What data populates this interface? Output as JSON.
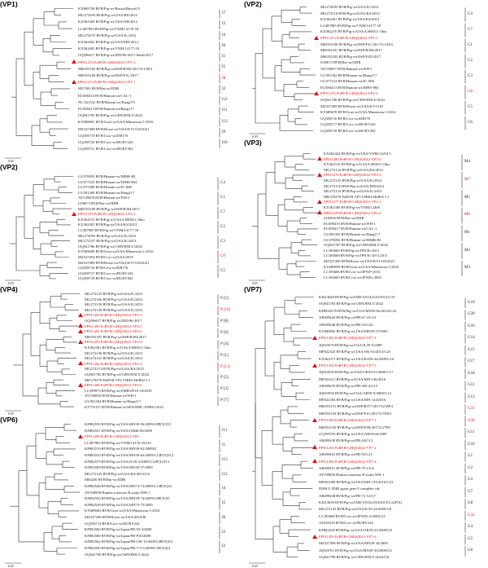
{
  "panels": [
    {
      "id": "vp1",
      "title": "(VP1)",
      "clades": [
        {
          "label": "I7"
        },
        {
          "label": "I3"
        },
        {
          "label": "I4"
        },
        {
          "label": "I6"
        },
        {
          "label": "I1"
        },
        {
          "label": "I5"
        },
        {
          "label": "I8",
          "highlight": true
        },
        {
          "label": "I2"
        },
        {
          "label": "I12"
        },
        {
          "label": "I11"
        },
        {
          "label": "I13"
        },
        {
          "label": "I9"
        },
        {
          "label": "I10"
        }
      ],
      "leaves": [
        {
          "text": "KX869738 RVB/Pig-wt/Russia/Buryat15"
        },
        {
          "text": "MG272493 RVB/Pig-wt/USA/RS/2012"
        },
        {
          "text": "KX362369 RVB/Pig-wt/USA/OH/2012"
        },
        {
          "text": "LC487993 RVB/Pig-wt/VNM/14176-18"
        },
        {
          "text": "MG272075 RVB/Pig-wt/USA/IL/2012"
        },
        {
          "text": "KX362402 RVB/Pig-wt/USA/MN/2012"
        },
        {
          "text": "KX362403 RVB/Pig-wt/VNM/14177-18"
        },
        {
          "text": "OQ596617 RVB/Pig-wt/IND/96-2017-Modi/2017"
        },
        {
          "text": "FP911275 PoRVB-GHQS2022-VP1-2",
          "highlight": true,
          "marker": true
        },
        {
          "text": "MK953183 RVB/Pig-wt/ESP/B394/2017/G1XP4"
        },
        {
          "text": "MK953184 RVB/Pig-wt/ESP/P1C/2017"
        },
        {
          "text": "FP911273 PoRVB-GHQS2022-VP1-1",
          "highlight": true,
          "marker": true
        },
        {
          "text": "M57365 RVB/Rat-wt/IDIR"
        },
        {
          "text": "EU490414 RVB/Human-wt/CAL-1"
        },
        {
          "text": "NC 021541 RVB/Human-wt/Bang373"
        },
        {
          "text": "EU490415 RVB/Human-wt/Bang117"
        },
        {
          "text": "OQ941783 RVB/Pig-wt/CHN/HNLY/2022"
        },
        {
          "text": "KY689681 RVB/Goat-wt/USA/Minnesota-1/2016"
        },
        {
          "text": "MZ327488 RVB/Horse-wt/USA/KY1518/2021"
        },
        {
          "text": "GQ358719 RVB/Cow-wt/DB176"
        },
        {
          "text": "GQ358720 RVB/Cow-wt/RUBV226"
        },
        {
          "text": "GQ358721 RVB/Cow-wt/RUBV282"
        }
      ]
    },
    {
      "id": "vp2a",
      "title": "(VP2)",
      "clades": [
        {
          "label": "C4"
        },
        {
          "label": "C7"
        },
        {
          "label": "C1"
        },
        {
          "label": "C2"
        },
        {
          "label": "C3"
        },
        {
          "label": "C8",
          "highlight": true
        },
        {
          "label": "C5"
        },
        {
          "label": "C6"
        }
      ],
      "leaves": [
        {
          "text": "MG272095 RVB/Pig-wt/USA/IL/2012"
        },
        {
          "text": "MG272116 RVB/Pig-wt/USA/KS/2013"
        },
        {
          "text": "KX362401 RVB/Pig-wt/USA/KS/2012"
        },
        {
          "text": "LC487985 RVB/Pig-wt/VNM/14177-18"
        },
        {
          "text": "KX362276 RVB/Pig-tc/USA/LS00011 Ohio"
        },
        {
          "text": "FP911274 PoRVB-GHQS2022-VP2-1",
          "highlight": true,
          "marker": true
        },
        {
          "text": "MK953180 RVB/Pig-wt/ESP/P1C/2017/G1XP4"
        },
        {
          "text": "MK953181 RVB/Pig-wt/ESP/B394/2017"
        },
        {
          "text": "MK953182 RVB/Pig-wt/ESP/P1D/2017"
        },
        {
          "text": "U00673 RVB/Rat-wt/IDIR"
        },
        {
          "text": "AY539857 RVB/Human-wt/WH-1"
        },
        {
          "text": "GU391302 RVB/Human-wt/Bang117"
        },
        {
          "text": "GU377214 RVB/Human-wt/IC-008"
        },
        {
          "text": "EU490413 RVB/Human-wt/IDHS-984"
        },
        {
          "text": "FP911276 PoRVB-GHQS2022-VP2-2",
          "highlight": true,
          "marker": true
        },
        {
          "text": "OQ941786 RVB/Pig-wt/CHN/HNLY/2022"
        },
        {
          "text": "MZ327489 RVB/Horse-wt/USA/KY1518"
        },
        {
          "text": "KY689678 RVB/Goat-wt/USA/Minnesota-1/2016"
        },
        {
          "text": "GQ358716 RVB/Cow-wt/DB176"
        },
        {
          "text": "GQ358717 RVB/Cow-wt/RUBV226"
        },
        {
          "text": "GQ358718 RVB/Cow-wt/RUBV282"
        }
      ]
    },
    {
      "id": "vp2b",
      "title": "(VP2)",
      "clades": [
        {
          "label": "C4"
        },
        {
          "label": "C1"
        },
        {
          "label": "C7"
        },
        {
          "label": "C2"
        },
        {
          "label": "C3"
        },
        {
          "label": "C8",
          "highlight": true
        },
        {
          "label": "C5"
        }
      ],
      "leaves": [
        {
          "text": "GU370055 RVB/Human-wt/MMR-B1"
        },
        {
          "text": "GU377225 RVB/Human-wt/IDHS-984"
        },
        {
          "text": "GU377208 RVB/Human-wt/IC-008"
        },
        {
          "text": "GU391300 RVB/Human-wt/Bang117"
        },
        {
          "text": "AY539859 RVB/Human-wt/WH-1"
        },
        {
          "text": "U00673 RVB/Rat-wt/IDIR"
        },
        {
          "text": "MK953180 RVB/Pig-wt/ESP/B394/2017"
        },
        {
          "text": "FP911276 PoRVB-GHQS2022-VP2-2",
          "highlight": true,
          "marker": true
        },
        {
          "text": "KX362515 RVB/Pig-tc/USA/LS00011 Ohio"
        },
        {
          "text": "KX362401 RVB/Pig-wt/USA/KS/2012"
        },
        {
          "text": "LC487985 RVB/Pig-wt/VNM/14177-18"
        },
        {
          "text": "MG272095 RVB/Pig-wt/USA/IL/2012"
        },
        {
          "text": "MG272107 RVB/Pig-wt/USA/IL/2013"
        },
        {
          "text": "OQ941786 RVB/Pig-wt/CHN/HNLY/2022"
        },
        {
          "text": "KY689698 RVB/Goat-wt/USA/Minnesota-1/2016"
        },
        {
          "text": "MZ327494 RVB/Cow-wt/USA/2019"
        },
        {
          "text": "MZ327489 RVB/Horse-wt/USA/KY1518/2021"
        },
        {
          "text": "GQ358716 RVB/Cow-wt/DB176"
        },
        {
          "text": "GQ358717 RVB/Cow-wt/RUBV226"
        },
        {
          "text": "GQ358718 RVB/Cow-wt/RUBV282"
        }
      ]
    },
    {
      "id": "vp3",
      "title": "(VP3)",
      "clades": [
        {
          "label": "M4"
        },
        {
          "label": "M7",
          "highlight": true
        },
        {
          "label": "M5"
        },
        {
          "label": "M6",
          "highlight": true
        },
        {
          "label": "M1"
        },
        {
          "label": "M2"
        },
        {
          "label": "M3"
        }
      ],
      "leaves": [
        {
          "text": "KX362424 RVB/Pig-wt/USA/VNM/14254 5"
        },
        {
          "text": "FP911280 PoRVB-GHQS2022-VP3-4",
          "highlight": true,
          "marker": true
        },
        {
          "text": "KX362516 RVB/Pig-tc/USA/LS00011 Ohio"
        },
        {
          "text": "MG272134 RVB/Pig-wt/USA/KS/2012"
        },
        {
          "text": "FP911279 PoRVB-GHQS2022-VP3-3",
          "highlight": true,
          "marker": true
        },
        {
          "text": "MG272135 RVB/Pig-wt/USA/IL/2013"
        },
        {
          "text": "MG272116 RVB/Pig-wt/USA/MN/2012"
        },
        {
          "text": "MG272133 RVB/Pig-wt/USA/IL/2013"
        },
        {
          "text": "MK379278 PoRVB VP3 VIRES HeB02 C1"
        },
        {
          "text": "FP911277 PoRVB-GHQS2022-VP3-1",
          "highlight": true,
          "marker": true
        },
        {
          "text": "KX362369 RVB/Pig-wt/VNM/12469"
        },
        {
          "text": "FP911278 PoRVB-GHQS2022-VP3-2",
          "highlight": true,
          "marker": true
        },
        {
          "text": "U00556 RVB/Rat-wt/IDIR"
        },
        {
          "text": "EU490416 RVB/Human-wt/WH-1"
        },
        {
          "text": "EU490417 RVB/Human-wt/CAL-1"
        },
        {
          "text": "GU391303 RVB/Human-wt/Bang117"
        },
        {
          "text": "GU370056 RVB/Human-wt/MMR-B1"
        },
        {
          "text": "OQ941787 RVB/Pig-wt/CHN/HNLY/2022"
        },
        {
          "text": "LC185668 RVB/Pig-wt/JPN/Ei-2011"
        },
        {
          "text": "LC185669 RVB/Pig-wt/JPN/Ei-2011/2011"
        },
        {
          "text": "MZ327490 RVB/Horse-wt/USA/KY1518/2021"
        },
        {
          "text": "KY689699 RVB/Goat-wt/USA/Minnesota-1/2016"
        },
        {
          "text": "LC185666 RVB/Cow-wt/JPN/P-2014"
        },
        {
          "text": "LC185665 RVB/Cow-wt/JPN/Ei-2003"
        }
      ]
    },
    {
      "id": "vp4",
      "title": "(VP4)",
      "clades": [
        {
          "label": "P [5]"
        },
        {
          "label": "P [10]",
          "highlight": true
        },
        {
          "label": "P [8]"
        },
        {
          "label": "P [6]"
        },
        {
          "label": "P [4]"
        },
        {
          "label": "P [1]"
        },
        {
          "label": "P [11]",
          "highlight": true
        },
        {
          "label": "P [2]"
        },
        {
          "label": "P [3]"
        },
        {
          "label": "P [7]"
        }
      ],
      "leaves": [
        {
          "text": "MG272125 RVB/Pig-wt/USA/IL/2013"
        },
        {
          "text": "MG272166 RVB/Pig-wt/USA/IL/2012"
        },
        {
          "text": "MG272159 RVB/Pig-wt/USA/IL/2013"
        },
        {
          "text": "MG272158 RVB/Pig-wt/USA/IL/2013"
        },
        {
          "text": "FP911284 PoRVB-GHQS2022-VP4-1",
          "highlight": true,
          "marker": true
        },
        {
          "text": "OQ596617 RVB/Pig-wt/IND/96-2017"
        },
        {
          "text": "FP911285 PoRVB-GHQS2022-VP4-5",
          "highlight": true,
          "marker": true
        },
        {
          "text": "FP911281 PoRVB-GHQS2022-VP4-2",
          "highlight": true,
          "marker": true
        },
        {
          "text": "MK953197 RVB/Pig-wt/ESP/B394/2017"
        },
        {
          "text": "FP911283 PoRVB-GHQS2022-VP4-4",
          "highlight": true,
          "marker": true
        },
        {
          "text": "KX362361 RVB/Pig-tc/USA/LS00011 Ohio"
        },
        {
          "text": "MG272136 RVB/Pig-wt/USA/IL/2012"
        },
        {
          "text": "MG272141 RVB/Pig-wt/USA/IL/2013"
        },
        {
          "text": "FP911282 PoRVB-GHQS2022-VP4-3",
          "highlight": true,
          "marker": true
        },
        {
          "text": "MG272113 RVB/Pig-wt/USA/KS/2013"
        },
        {
          "text": "OQ941785 RVB/Pig-wt/CHN/HNLY/2022"
        },
        {
          "text": "MK379279 PoRVB VP4 VIRES HeB02 C1"
        },
        {
          "text": "FP911286 PoRVB-GHQS2022-VP4-6",
          "highlight": true,
          "marker": true
        },
        {
          "text": "LC189973 RVB/Pig-wt/ZMB/ZP16-18/2018"
        },
        {
          "text": "AY539856 RVB/Human-wt/WH-1"
        },
        {
          "text": "GU391304 RVB/Human-wt/Bang117"
        },
        {
          "text": "KT755137 RVB/Human-wt/SEN/MRC-DPRU/2010"
        }
      ]
    },
    {
      "id": "vp6",
      "title": "(VP6)",
      "clades": [
        {
          "label": "I11"
        },
        {
          "label": "I1"
        },
        {
          "label": "I13"
        },
        {
          "label": "I12"
        },
        {
          "label": "I4"
        },
        {
          "label": "I5"
        },
        {
          "label": "I6"
        },
        {
          "label": "I3"
        },
        {
          "label": "I2"
        }
      ],
      "leaves": [
        {
          "text": "KF882550 RVB/Pig-wt/USA/MN39-36/2009/G8P[X]/I11"
        },
        {
          "text": "KF882551 RVB/Pig-wt/USA/OH46-60/2009"
        },
        {
          "text": "FP911288 PoRVB-GHQS2022-VP6",
          "highlight": true,
          "marker": true
        },
        {
          "text": "LC487982 RVB/Pig-wt/VNM/14176-18/I10"
        },
        {
          "text": "KF882519 RVB/Pig-wt/USA/MN39-62/2009/I1"
        },
        {
          "text": "KF882535 RVB/Pig-wt/USA/MN39-62/2009/G12P[X]/I12"
        },
        {
          "text": "KF882579 RVB/Pig-wt/USA/IL59-3/2009/G12P[X]/I13"
        },
        {
          "text": "KF882599 RVB/Pig-wt/USA/MN39-57/2009"
        },
        {
          "text": "MG272145 RVB/Pig-wt/USA/KS/2012/I12"
        },
        {
          "text": "M84456 RVB/Rat-wt/IDIR"
        },
        {
          "text": "KF882548 RVB/Pig-wt/USA/MN74-72/2009/G14P[X]/I4"
        },
        {
          "text": "AY539858 Human rotavirus B strain WH-1"
        },
        {
          "text": "KF882556 RVB/Pig-wt/USA/MN39-74/2009/G9P[X]/I5"
        },
        {
          "text": "KF882528 RVB/Pig-wt/USA/MN74-75/2009"
        },
        {
          "text": "KY689663 RVB/Goat-wt/USA/Minnesota-1/2016"
        },
        {
          "text": "MZ327496 RVB/Horse-wt/USA/2019/I6"
        },
        {
          "text": "GQ358714 RVB/Cow-wt/RUBV226"
        },
        {
          "text": "KF882566 RVB/Pig-wt/Japan/PB-93-3/2009"
        },
        {
          "text": "KF882560 RVB/Pig-wt/Japan/PB-P10/2009"
        },
        {
          "text": "KF882562 RVB/Pig-wt/Japan/PB-158-15/2009/G8P[X]/I3"
        },
        {
          "text": "KF882590 RVB/Pig-wt/Japan/PB-7-5-5/2009/G5P[X]/I4"
        },
        {
          "text": "OQ941790 RVB/Pig-wt/CHN/HNLY/2022"
        }
      ]
    },
    {
      "id": "vp7",
      "title": "(VP7)",
      "clades": [
        {
          "label": "G19"
        },
        {
          "label": "G20"
        },
        {
          "label": "G16"
        },
        {
          "label": "G14"
        },
        {
          "label": "G15"
        },
        {
          "label": "G17"
        },
        {
          "label": "G18"
        },
        {
          "label": "G12"
        },
        {
          "label": "G13"
        },
        {
          "label": "G31",
          "highlight": true
        },
        {
          "label": "G30",
          "highlight": true
        },
        {
          "label": "G11"
        },
        {
          "label": "G10"
        },
        {
          "label": "G1"
        },
        {
          "label": "G2"
        },
        {
          "label": "G3"
        },
        {
          "label": "G7"
        },
        {
          "label": "G8"
        },
        {
          "label": "G32",
          "highlight": true
        },
        {
          "label": "G4"
        },
        {
          "label": "G5"
        },
        {
          "label": "G6"
        }
      ],
      "leaves": [
        {
          "text": "KJ613649 RVB/Pig-wt/IND/AN142129/2013/G19"
        },
        {
          "text": "OQ941783 RVB/Pig-wt/CHN/HNLY/2022"
        },
        {
          "text": "KF8822578 RVB/Pig-wt/USA/MN39-66/2014/G22"
        },
        {
          "text": "AB499443 RVB/Pig-wt/PB-67-2/G14"
        },
        {
          "text": "AB499448 RVB/Pig-wt/PB-33/G20"
        },
        {
          "text": "KY689693 RVB/Pig-wt/USA/MN39-37/2009"
        },
        {
          "text": "FP911282 PoRVB-GHQS2022-VP7-3",
          "highlight": true,
          "marker": true
        },
        {
          "text": "JQ943570 RVB/Pig-wt/USA/IL59-5/2009"
        },
        {
          "text": "MF022325 RVB/Pig-wt/USA/OK-63/2013/G25"
        },
        {
          "text": "KX362371 RVB/Pig-wt/USA/KS59-44/2009/G16"
        },
        {
          "text": "FP911294 PoRVB-GHQS2022-VP7-5",
          "highlight": true,
          "marker": true
        },
        {
          "text": "JQ943556 RVB/Pig-wt/USA/OK59-51/2009/G17"
        },
        {
          "text": "MF022411 RVB/Pig-wt/USA/MN-146/2016"
        },
        {
          "text": "AB499435 RVB/Pig-wt/PB-369-2/G15"
        },
        {
          "text": "JQ943556 RVB/Pig-wt/USA/AR59-9/2009/G14"
        },
        {
          "text": "MF022384 RVB/Pig-wt/USA/MN-124/2016"
        },
        {
          "text": "MK953151 RVB/Pig-wt/ESP/B377/2017/G5XP4"
        },
        {
          "text": "MK953150 RVB/Pig-wt/ESP/P1C/2017/G5XP4"
        },
        {
          "text": "FP911289 PoRVB-GHQS2022-VP7-1",
          "highlight": true,
          "marker": true
        },
        {
          "text": "MK953156 RVB/Pig-wt/ESP/P1B/2017/G27P6"
        },
        {
          "text": "GQ358703 RVB/Pig-wt/USA/AR59-66/2009"
        },
        {
          "text": "AB499438 RVB/Pig-wt/PB-44/G13"
        },
        {
          "text": "FP911291 PoRVB-GHQS2022-VP7-2",
          "highlight": true,
          "marker": true
        },
        {
          "text": "AB499441 RVB/Pig-wt/PB-55/G11"
        },
        {
          "text": "FP911290 PoRVB-GHQS2022-VP7-4",
          "highlight": true,
          "marker": true
        },
        {
          "text": "AB499451 RVB/Pig-wt/PB-79-1/G4"
        },
        {
          "text": "AY539856 Human rotavirus B strain WH-1"
        },
        {
          "text": "MF022388 RVB/Pig-wt/USA/MN-135/2016/G23"
        },
        {
          "text": "D00911 IDIR agent gene 9 complete cds"
        },
        {
          "text": "AB499448 RVB/Pig-wt/PB-72-12/G7"
        },
        {
          "text": "KJ613650 RVB/Pig-wt/IND/AN142150/2013/G12P[X]"
        },
        {
          "text": "MG272145 RVB/Pig-wt/USA/IL59-24/2009/G8"
        },
        {
          "text": "LC185668 RVB/Cow-wt/JPN/Ei-2/2003/G3"
        },
        {
          "text": "AF529216 RVB/Cow-wt/RUBV226"
        },
        {
          "text": "KF882528 RVB/Pig-wt/USA/OK59-33/2009/G8"
        },
        {
          "text": "FP911293 PoRVB-GHQS2022-VP7-6",
          "highlight": true,
          "marker": true
        },
        {
          "text": "MZ327496 RVB/Pig-wt/USA/MN39-34/2009"
        },
        {
          "text": "JQ943761 RVB/Pig-wt/USA/MN39-35/2009/G5"
        },
        {
          "text": "OQ941790 RVB/Pig-wt/CHN/HNLY/2022/G6"
        }
      ]
    }
  ],
  "scale_bars": {
    "vp1": "0.05",
    "vp2a": "0.05",
    "vp2b": "0.05",
    "vp3": "0.05",
    "vp4": "0.05",
    "vp6": "0.05",
    "vp7": "0.05"
  }
}
